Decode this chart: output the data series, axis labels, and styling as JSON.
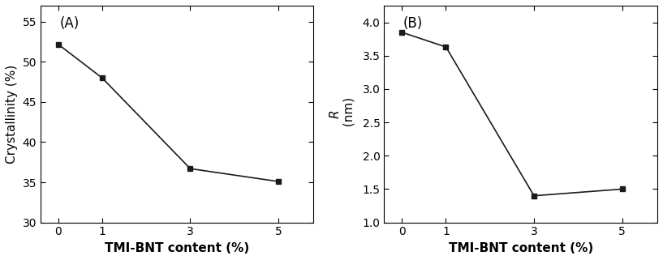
{
  "panel_A": {
    "label": "(A)",
    "x": [
      0,
      1,
      3,
      5
    ],
    "y": [
      52.2,
      48.0,
      36.7,
      35.1
    ],
    "xlabel": "TMI-BNT content (%)",
    "ylabel": "Crystallinity (%)",
    "ylim": [
      30,
      57
    ],
    "yticks": [
      30,
      35,
      40,
      45,
      50,
      55
    ],
    "xticks": [
      0,
      1,
      3,
      5
    ],
    "xlim": [
      -0.4,
      5.8
    ]
  },
  "panel_B": {
    "label": "(B)",
    "x": [
      0,
      1,
      3,
      5
    ],
    "y": [
      3.85,
      3.63,
      1.4,
      1.5
    ],
    "xlabel": "TMI-BNT content (%)",
    "ylabel_italic": "R",
    "ylabel_normal": " (nm)",
    "ylim": [
      1.0,
      4.25
    ],
    "yticks": [
      1.0,
      1.5,
      2.0,
      2.5,
      3.0,
      3.5,
      4.0
    ],
    "xticks": [
      0,
      1,
      3,
      5
    ],
    "xlim": [
      -0.4,
      5.8
    ]
  },
  "line_color": "#1a1a1a",
  "marker": "s",
  "marker_size": 5,
  "marker_facecolor": "#1a1a1a",
  "linewidth": 1.2,
  "xlabel_fontsize": 11,
  "ylabel_fontsize": 11,
  "tick_fontsize": 10,
  "panel_label_fontsize": 12,
  "background_color": "#ffffff"
}
